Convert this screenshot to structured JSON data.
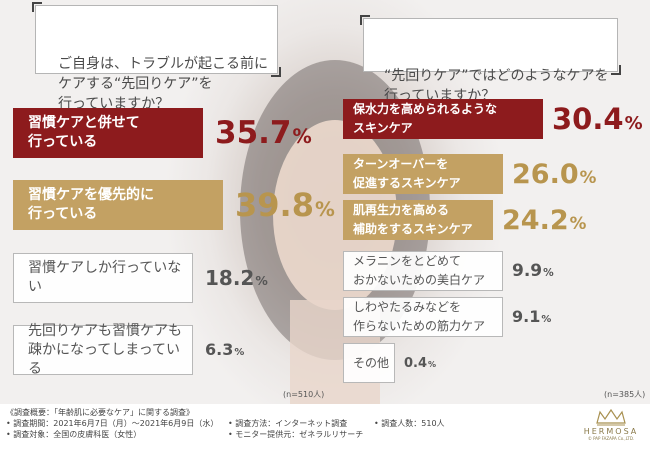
{
  "questions": {
    "left": "ご自身は、トラブルが起こる前に\nケアする“先回りケア”を\n行っていますか？",
    "right": "“先回りケア”ではどのようなケアを\n行っていますか？"
  },
  "colors": {
    "red": "#8d1b1d",
    "gold": "#c3a163",
    "white": "#ffffff",
    "dark_text": "#555555"
  },
  "chart_data": [
    {
      "type": "bar",
      "categories": [
        "習慣ケアと併せて\n行っている",
        "習慣ケアを優先的に\n行っている",
        "習慣ケアしか行っていない",
        "先回りケアも習慣ケアも\n疎かになってしまっている"
      ],
      "values": [
        35.7,
        39.8,
        18.2,
        6.3
      ],
      "value_labels": [
        "35.7",
        "39.8",
        "18.2",
        "6.3"
      ],
      "unit": "%",
      "styles": [
        "red",
        "gold",
        "white",
        "white"
      ],
      "n": "(n=510人)"
    },
    {
      "type": "bar",
      "categories": [
        "保水力を高められるような\nスキンケア",
        "ターンオーバーを\n促進するスキンケア",
        "肌再生力を高める\n補助をするスキンケア",
        "メラニンをとどめて\nおかないための美白ケア",
        "しわやたるみなどを\n作らないための筋力ケア",
        "その他"
      ],
      "values": [
        30.4,
        26.0,
        24.2,
        9.9,
        9.1,
        0.4
      ],
      "value_labels": [
        "30.4",
        "26.0",
        "24.2",
        "9.9",
        "9.1",
        "0.4"
      ],
      "unit": "%",
      "styles": [
        "red",
        "gold",
        "gold",
        "white",
        "white",
        "white"
      ],
      "n": "(n=385人)"
    }
  ],
  "footer": {
    "title": "《調査概要：「年齢肌に必要なケア」に関する調査》",
    "period": "• 調査期間：2021年6月7日（月）～2021年6月9日（水）",
    "target": "• 調査対象：全国の皮膚科医（女性）",
    "method": "• 調査方法：インターネット調査",
    "monitor": "• モニター提供元：ゼネラルリサーチ",
    "count": "• 調査人数：510人"
  },
  "brand": {
    "name": "HERMOSA",
    "copyright": "© PAP FAZAPA Co.,LTD."
  }
}
